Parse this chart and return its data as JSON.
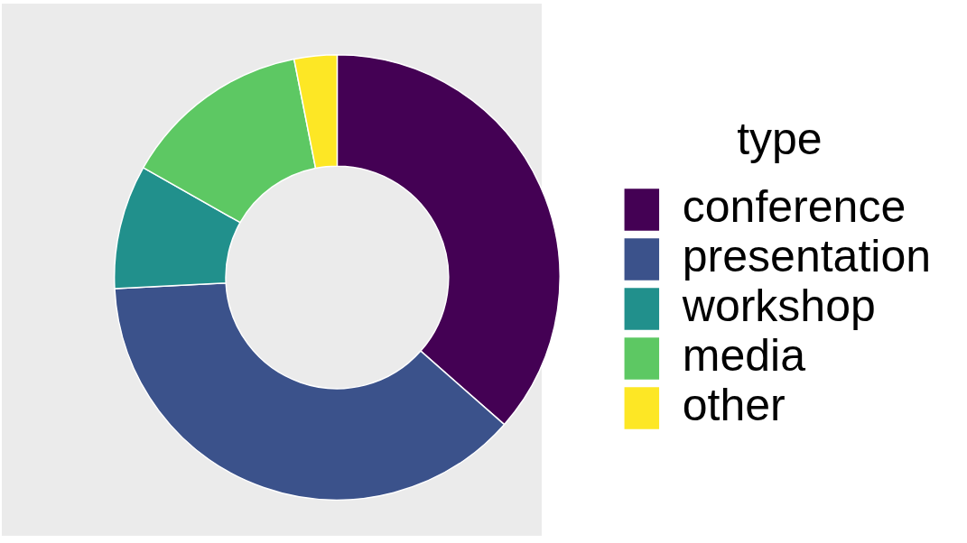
{
  "chart_data": {
    "type": "donut",
    "legend_title": "type",
    "legend": "right",
    "categories": [
      "conference",
      "presentation",
      "workshop",
      "media",
      "other"
    ],
    "values": [
      36.5,
      37.7,
      9,
      13.7,
      3.1
    ],
    "colors": [
      "#440154",
      "#3b528b",
      "#21908c",
      "#5dc863",
      "#fde725"
    ]
  }
}
